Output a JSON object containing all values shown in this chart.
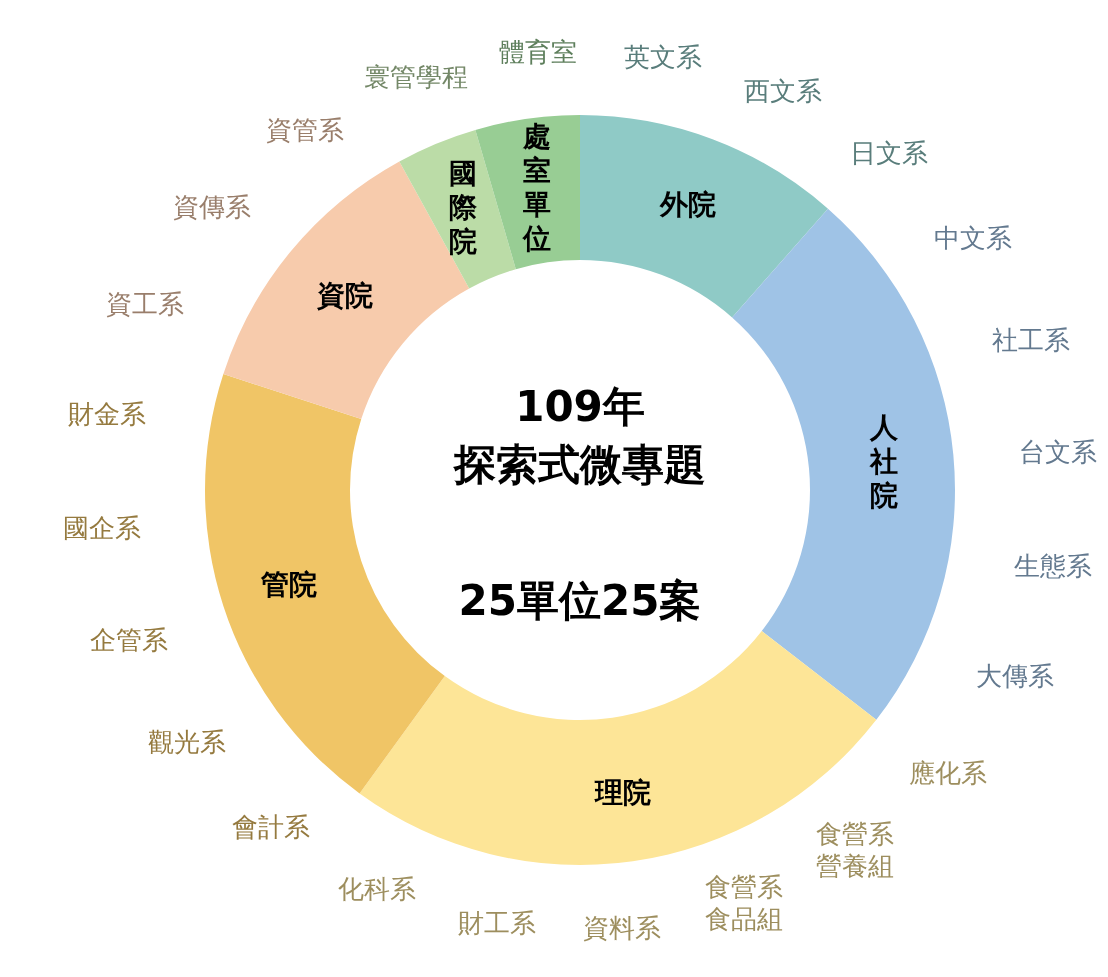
{
  "chart_data": {
    "type": "donut",
    "title": "109年探索式微專題",
    "subtitle": "25單位25案",
    "categories": [
      "外院",
      "人社院",
      "理院",
      "管院",
      "資院",
      "國際院",
      "處室單位"
    ],
    "values": [
      11.5,
      24,
      24.5,
      20,
      12,
      3.5,
      4.5
    ],
    "colors": [
      "#8fcac6",
      "#9fc3e6",
      "#fde597",
      "#f0c566",
      "#f7cbac",
      "#bbdca7",
      "#98cd94"
    ],
    "legend": false,
    "annotations": [
      "英文系",
      "西文系",
      "日文系",
      "中文系",
      "社工系",
      "台文系",
      "生態系",
      "大傳系",
      "應化系",
      "食營系營養組",
      "食營系食品組",
      "資料系",
      "財工系",
      "化科系",
      "會計系",
      "觀光系",
      "企管系",
      "國企系",
      "財金系",
      "資工系",
      "資傳系",
      "資管系",
      "寰管學程",
      "體育室"
    ]
  }
}
